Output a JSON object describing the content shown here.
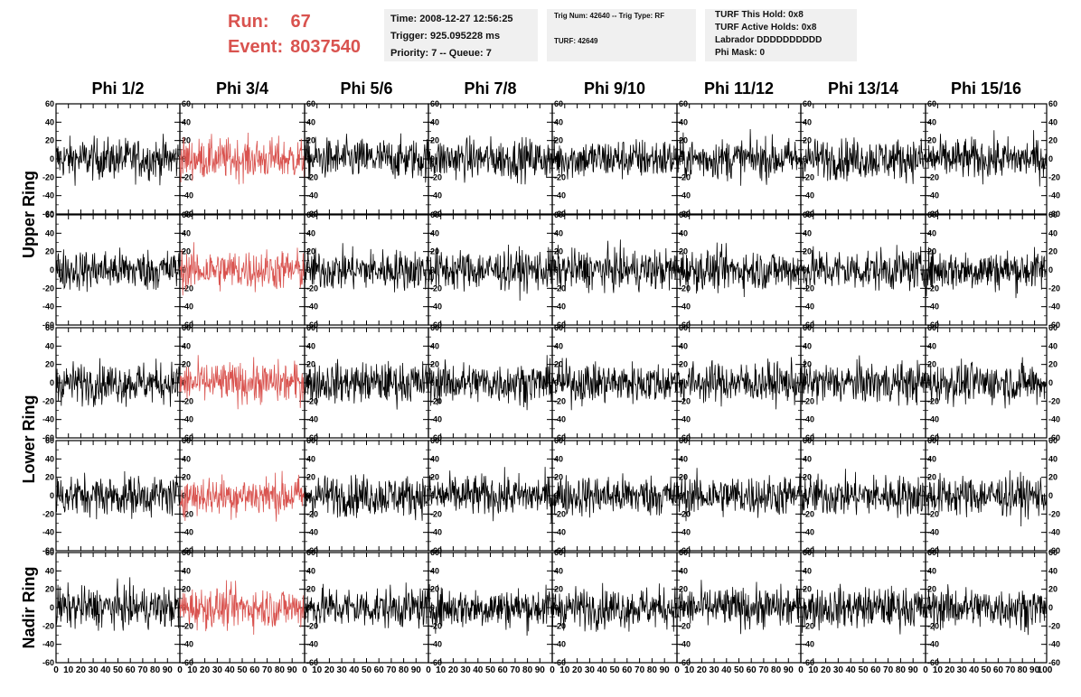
{
  "header": {
    "run_label": "Run:",
    "run_value": "67",
    "event_label": "Event:",
    "event_value": "8037540",
    "accent_color": "#d9534f"
  },
  "info_boxes": {
    "time": "Time: 2008-12-27 12:56:25",
    "trigger": "Trigger: 925.095228 ms",
    "priority": "Priority: 7 -- Queue: 7",
    "trig_num": "Trig Num: 42640 -- Trig Type: RF",
    "turf": "TURF: 42649",
    "turf_this_hold": "TURF This Hold: 0x8",
    "turf_active_holds": "TURF Active Holds: 0x8",
    "labrador": "Labrador DDDDDDDDDD",
    "phi_mask": "Phi Mask: 0"
  },
  "chart_data": {
    "type": "line",
    "columns": [
      "Phi 1/2",
      "Phi 3/4",
      "Phi 5/6",
      "Phi 7/8",
      "Phi 9/10",
      "Phi 11/12",
      "Phi 13/14",
      "Phi 15/16"
    ],
    "ring_groups": [
      {
        "label": "Upper Ring",
        "rows": [
          0,
          1
        ]
      },
      {
        "label": "Lower Ring",
        "rows": [
          2,
          3
        ]
      },
      {
        "label": "Nadir Ring",
        "rows": [
          4
        ]
      }
    ],
    "rows": 5,
    "xlim": [
      0,
      100
    ],
    "ylim": [
      -60,
      60
    ],
    "y_ticks": [
      -60,
      -40,
      -20,
      0,
      20,
      40,
      60
    ],
    "y_tick_labels": [
      "-60",
      "-40",
      "-20",
      "0",
      "20",
      "40",
      "60"
    ],
    "x_ticks": [
      0,
      10,
      20,
      30,
      40,
      50,
      60,
      70,
      80,
      90
    ],
    "x_tick_labels": [
      "0",
      "10",
      "20",
      "30",
      "40",
      "50",
      "60",
      "70",
      "80",
      "90"
    ],
    "x_end_tick_label": "100",
    "highlight_column": 1,
    "trace_color": "#000000",
    "highlight_color": "#d9534f",
    "trace_amplitude": 15,
    "grid": false
  }
}
